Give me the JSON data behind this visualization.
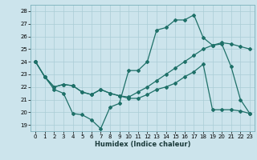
{
  "xlabel": "Humidex (Indice chaleur)",
  "xlim": [
    -0.5,
    23.5
  ],
  "ylim": [
    18.5,
    28.5
  ],
  "yticks": [
    19,
    20,
    21,
    22,
    23,
    24,
    25,
    26,
    27,
    28
  ],
  "xticks": [
    0,
    1,
    2,
    3,
    4,
    5,
    6,
    7,
    8,
    9,
    10,
    11,
    12,
    13,
    14,
    15,
    16,
    17,
    18,
    19,
    20,
    21,
    22,
    23
  ],
  "bg_color": "#cce4ec",
  "grid_color": "#aaccd6",
  "line_color": "#1e7068",
  "series1_x": [
    0,
    1,
    2,
    3,
    4,
    5,
    6,
    7,
    8,
    9,
    10,
    11,
    12,
    13,
    14,
    15,
    16,
    17,
    18,
    19,
    20,
    21,
    22,
    23
  ],
  "series1_y": [
    24.0,
    22.8,
    21.8,
    21.5,
    19.9,
    19.8,
    19.4,
    18.7,
    20.4,
    20.7,
    23.3,
    23.3,
    24.0,
    26.5,
    26.7,
    27.3,
    27.3,
    27.7,
    25.9,
    25.3,
    25.4,
    23.6,
    21.0,
    19.9
  ],
  "series2_x": [
    0,
    1,
    2,
    3,
    4,
    5,
    6,
    7,
    8,
    9,
    10,
    11,
    12,
    13,
    14,
    15,
    16,
    17,
    18,
    19,
    20,
    21,
    22,
    23
  ],
  "series2_y": [
    24.0,
    22.8,
    22.0,
    22.2,
    22.1,
    21.6,
    21.4,
    21.8,
    21.5,
    21.3,
    21.2,
    21.6,
    22.0,
    22.5,
    23.0,
    23.5,
    24.0,
    24.5,
    25.0,
    25.3,
    25.5,
    25.4,
    25.2,
    25.0
  ],
  "series3_x": [
    0,
    1,
    2,
    3,
    4,
    5,
    6,
    7,
    8,
    9,
    10,
    11,
    12,
    13,
    14,
    15,
    16,
    17,
    18,
    19,
    20,
    21,
    22,
    23
  ],
  "series3_y": [
    24.0,
    22.8,
    22.0,
    22.2,
    22.1,
    21.6,
    21.4,
    21.8,
    21.5,
    21.3,
    21.1,
    21.1,
    21.4,
    21.8,
    22.0,
    22.3,
    22.8,
    23.2,
    23.8,
    20.2,
    20.2,
    20.2,
    20.1,
    19.9
  ]
}
